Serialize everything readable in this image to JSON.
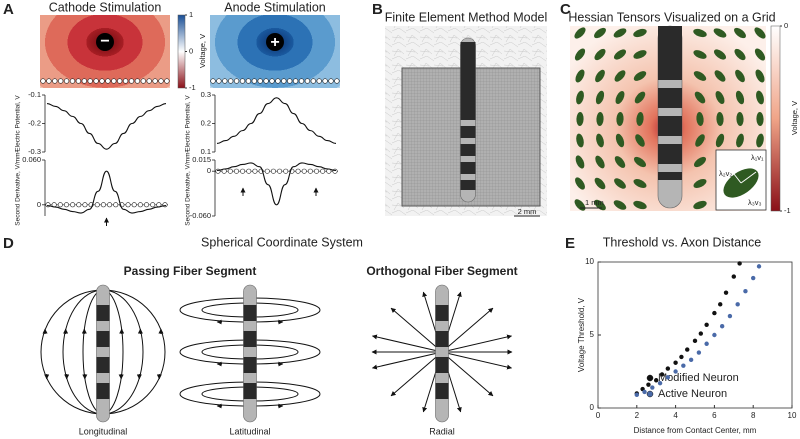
{
  "panel_a": {
    "letter": "A",
    "colorbar": {
      "label": "Voltage, V",
      "lim": [
        -1,
        1
      ],
      "ticks": [
        1,
        0,
        -1
      ]
    },
    "plots": [
      {
        "title": "Cathode Stimulation",
        "sign": "−",
        "potential": {
          "ylabel": "Electric Potential, V",
          "ylim": [
            -0.3,
            -0.1
          ],
          "yticks": [
            -0.1,
            -0.2,
            -0.3
          ],
          "values": [
            -0.13,
            -0.14,
            -0.155,
            -0.175,
            -0.2,
            -0.235,
            -0.27,
            -0.29,
            -0.27,
            -0.235,
            -0.2,
            -0.175,
            -0.155,
            -0.14,
            -0.13
          ]
        },
        "derivative": {
          "ylabel": "Second Derivative, V/mm²",
          "ylim": [
            -0.015,
            0.06
          ],
          "yticks": [
            {
              "value": 0.06,
              "label": "0.060"
            },
            0
          ],
          "values": [
            -0.001,
            -0.003,
            -0.006,
            -0.009,
            -0.011,
            -0.006,
            0.018,
            0.045,
            0.018,
            -0.006,
            -0.011,
            -0.009,
            -0.006,
            -0.003,
            -0.001
          ]
        }
      },
      {
        "title": "Anode Stimulation",
        "sign": "+",
        "potential": {
          "ylabel": "Electric Potential, V",
          "ylim": [
            0.1,
            0.3
          ],
          "yticks": [
            0.3,
            0.2,
            0.1
          ],
          "values": [
            0.13,
            0.14,
            0.155,
            0.175,
            0.2,
            0.235,
            0.27,
            0.29,
            0.27,
            0.235,
            0.2,
            0.175,
            0.155,
            0.14,
            0.13
          ]
        },
        "derivative": {
          "ylabel": "Second Derivative, V/mm²",
          "ylim": [
            -0.06,
            0.015
          ],
          "yticks": [
            {
              "value": 0.015,
              "label": "0.015"
            },
            0,
            {
              "value": -0.06,
              "label": "-0.060"
            }
          ],
          "values": [
            0.001,
            0.003,
            0.006,
            0.009,
            0.011,
            0.006,
            -0.018,
            -0.045,
            -0.018,
            0.006,
            0.011,
            0.009,
            0.006,
            0.003,
            0.001
          ]
        }
      }
    ]
  },
  "panel_b": {
    "letter": "B",
    "title": "Finite Element Method Model",
    "scale_bar": "2 mm"
  },
  "panel_c": {
    "letter": "C",
    "title": "Hessian Tensors Visualized on a Grid",
    "colorbar": {
      "label": "Voltage, V",
      "lim": [
        -1,
        0
      ],
      "ticks": [
        0,
        -1
      ]
    },
    "scale_bar": "1 mm",
    "eigen_labels": [
      "λ₁v₁",
      "λ₂v₂",
      "λ₃v₃"
    ]
  },
  "panel_d": {
    "letter": "D",
    "title": "Spherical Coordinate System",
    "groups": [
      "Passing Fiber Segment",
      "Orthogonal Fiber Segment"
    ],
    "labels": [
      "Longitudinal",
      "Latitudinal",
      "Radial"
    ]
  },
  "panel_e": {
    "letter": "E",
    "chart_data": {
      "type": "scatter",
      "title": "Threshold vs. Axon Distance",
      "xlabel": "Distance from Contact Center, mm",
      "ylabel": "Voltage Threshold, V",
      "xlim": [
        0,
        10
      ],
      "ylim": [
        0,
        10
      ],
      "xticks": [
        0,
        2,
        4,
        6,
        8,
        10
      ],
      "yticks": [
        0,
        5,
        10
      ],
      "legend": "lower right",
      "series": [
        {
          "name": "Modified Neuron",
          "color": "#111111",
          "x": [
            2.0,
            2.3,
            2.6,
            3.0,
            3.3,
            3.6,
            4.0,
            4.3,
            4.6,
            5.0,
            5.3,
            5.6,
            6.0,
            6.3,
            6.6,
            7.0,
            7.3
          ],
          "values": [
            1.0,
            1.3,
            1.6,
            1.9,
            2.3,
            2.7,
            3.1,
            3.5,
            4.0,
            4.6,
            5.1,
            5.7,
            6.5,
            7.1,
            7.9,
            9.0,
            9.9
          ]
        },
        {
          "name": "Active Neuron",
          "color": "#4a6aa8",
          "x": [
            2.0,
            2.4,
            2.8,
            3.2,
            3.6,
            4.0,
            4.4,
            4.8,
            5.2,
            5.6,
            6.0,
            6.4,
            6.8,
            7.2,
            7.6,
            8.0,
            8.3
          ],
          "values": [
            0.9,
            1.1,
            1.4,
            1.7,
            2.1,
            2.5,
            2.9,
            3.3,
            3.8,
            4.4,
            5.0,
            5.6,
            6.3,
            7.1,
            8.0,
            8.9,
            9.7
          ]
        }
      ]
    }
  }
}
